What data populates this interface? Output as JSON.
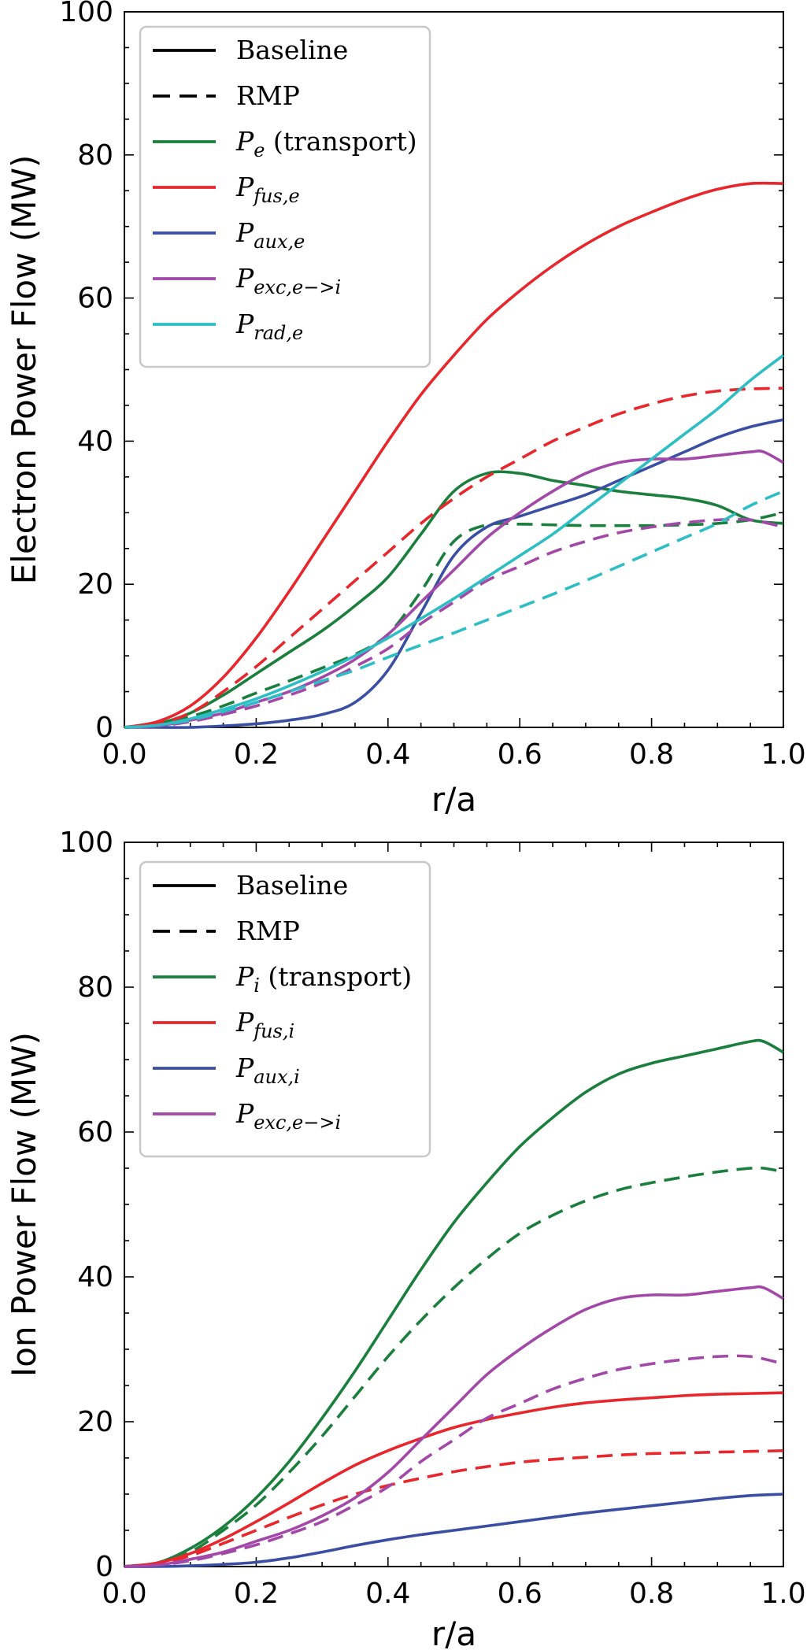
{
  "chart_data": [
    {
      "type": "line",
      "xlabel": "r/a",
      "ylabel": "Electron Power Flow (MW)",
      "xlim": [
        0.0,
        1.0
      ],
      "ylim": [
        0,
        100
      ],
      "xticks": [
        "0.0",
        "0.2",
        "0.4",
        "0.6",
        "0.8",
        "1.0"
      ],
      "yticks": [
        "0",
        "20",
        "40",
        "60",
        "80",
        "100"
      ],
      "legend_position": "top-left",
      "legend": [
        {
          "style": "solid",
          "color": "#000000",
          "text": "Baseline"
        },
        {
          "style": "dashed",
          "color": "#000000",
          "text": "RMP"
        },
        {
          "style": "solid",
          "color": "#1a7f3c",
          "main": "P",
          "sub": "e",
          "suffix": " (transport)"
        },
        {
          "style": "solid",
          "color": "#e8262b",
          "main": "P",
          "sub": "fus,e",
          "suffix": ""
        },
        {
          "style": "solid",
          "color": "#3a4fa3",
          "main": "P",
          "sub": "aux,e",
          "suffix": ""
        },
        {
          "style": "solid",
          "color": "#a347a8",
          "main": "P",
          "sub": "exc,e−>i",
          "suffix": ""
        },
        {
          "style": "solid",
          "color": "#2bbfc5",
          "main": "P",
          "sub": "rad,e",
          "suffix": ""
        }
      ],
      "series": [
        {
          "name": "P_e (transport) Baseline",
          "color": "#1a7f3c",
          "dash": false,
          "x": [
            0,
            0.05,
            0.1,
            0.15,
            0.2,
            0.25,
            0.3,
            0.35,
            0.4,
            0.45,
            0.5,
            0.55,
            0.6,
            0.65,
            0.7,
            0.75,
            0.8,
            0.85,
            0.9,
            0.95,
            1.0
          ],
          "y": [
            0,
            0.5,
            2,
            4.5,
            7.5,
            10.5,
            13.5,
            17,
            21,
            27,
            33,
            35.5,
            35.5,
            34.5,
            33.8,
            33,
            32.5,
            32,
            31,
            29,
            28.5
          ]
        },
        {
          "name": "P_e (transport) RMP",
          "color": "#1a7f3c",
          "dash": true,
          "x": [
            0,
            0.05,
            0.1,
            0.15,
            0.2,
            0.25,
            0.3,
            0.35,
            0.4,
            0.45,
            0.5,
            0.55,
            0.6,
            0.65,
            0.7,
            0.75,
            0.8,
            0.85,
            0.9,
            0.95,
            1.0
          ],
          "y": [
            0,
            0.4,
            1.5,
            3,
            4.8,
            6.5,
            8.3,
            10.2,
            13,
            19,
            26,
            28.3,
            28.4,
            28.3,
            28.2,
            28.2,
            28.2,
            28.3,
            28.5,
            29,
            30
          ]
        },
        {
          "name": "P_fus,e Baseline",
          "color": "#e8262b",
          "dash": false,
          "x": [
            0,
            0.05,
            0.1,
            0.15,
            0.2,
            0.25,
            0.3,
            0.35,
            0.4,
            0.45,
            0.5,
            0.55,
            0.6,
            0.65,
            0.7,
            0.75,
            0.8,
            0.85,
            0.9,
            0.95,
            1.0
          ],
          "y": [
            0,
            0.8,
            3,
            7,
            12.5,
            19,
            26,
            33,
            40,
            46.5,
            52,
            57,
            61,
            64.5,
            67.5,
            70,
            72,
            73.8,
            75.2,
            76,
            76
          ]
        },
        {
          "name": "P_fus,e RMP",
          "color": "#e8262b",
          "dash": true,
          "x": [
            0,
            0.05,
            0.1,
            0.15,
            0.2,
            0.25,
            0.3,
            0.35,
            0.4,
            0.45,
            0.5,
            0.55,
            0.6,
            0.65,
            0.7,
            0.75,
            0.8,
            0.85,
            0.9,
            0.95,
            1.0
          ],
          "y": [
            0,
            0.5,
            2,
            5,
            8.5,
            12.5,
            16.5,
            20.5,
            24.5,
            28.5,
            32,
            35,
            37.5,
            40,
            42,
            43.8,
            45.2,
            46.3,
            47,
            47.3,
            47.4
          ]
        },
        {
          "name": "P_aux,e Baseline",
          "color": "#3a4fa3",
          "dash": false,
          "x": [
            0,
            0.05,
            0.1,
            0.15,
            0.2,
            0.25,
            0.3,
            0.35,
            0.4,
            0.45,
            0.5,
            0.55,
            0.6,
            0.65,
            0.7,
            0.75,
            0.8,
            0.85,
            0.9,
            0.95,
            1.0
          ],
          "y": [
            0,
            0,
            0,
            0.2,
            0.5,
            1,
            1.8,
            3.5,
            8,
            16,
            24,
            28,
            29.5,
            31,
            32.5,
            34.5,
            36.5,
            38.5,
            40.5,
            42,
            43
          ]
        },
        {
          "name": "P_exc,e->i Baseline",
          "color": "#a347a8",
          "dash": false,
          "x": [
            0,
            0.05,
            0.1,
            0.15,
            0.2,
            0.25,
            0.3,
            0.35,
            0.4,
            0.45,
            0.5,
            0.55,
            0.6,
            0.65,
            0.7,
            0.75,
            0.8,
            0.85,
            0.9,
            0.95,
            0.97,
            1.0
          ],
          "y": [
            0,
            0.2,
            1,
            2,
            3.5,
            5,
            7,
            9.5,
            13,
            17.5,
            22,
            26.5,
            30,
            33,
            35.5,
            37,
            37.5,
            37.5,
            38,
            38.5,
            38.5,
            37
          ]
        },
        {
          "name": "P_exc,e->i RMP",
          "color": "#a347a8",
          "dash": true,
          "x": [
            0,
            0.05,
            0.1,
            0.15,
            0.2,
            0.25,
            0.3,
            0.35,
            0.4,
            0.45,
            0.5,
            0.55,
            0.6,
            0.65,
            0.7,
            0.75,
            0.8,
            0.85,
            0.9,
            0.95,
            1.0
          ],
          "y": [
            0,
            0.2,
            0.8,
            1.8,
            3,
            4.5,
            6.2,
            8.5,
            11,
            14.5,
            17.5,
            20.5,
            22.5,
            24.5,
            26,
            27.2,
            28,
            28.6,
            29,
            29,
            28
          ]
        },
        {
          "name": "P_rad,e Baseline",
          "color": "#2bbfc5",
          "dash": false,
          "x": [
            0,
            0.05,
            0.1,
            0.15,
            0.2,
            0.25,
            0.3,
            0.35,
            0.4,
            0.45,
            0.5,
            0.55,
            0.6,
            0.65,
            0.7,
            0.75,
            0.8,
            0.85,
            0.9,
            0.95,
            1.0
          ],
          "y": [
            0,
            0.3,
            1.2,
            2.5,
            4,
            5.8,
            7.8,
            10,
            12.5,
            15.2,
            18,
            21,
            24,
            27,
            30.5,
            34,
            37.5,
            41,
            44.5,
            48.5,
            52
          ]
        },
        {
          "name": "P_rad,e RMP",
          "color": "#2bbfc5",
          "dash": true,
          "x": [
            0,
            0.05,
            0.1,
            0.15,
            0.2,
            0.25,
            0.3,
            0.35,
            0.4,
            0.45,
            0.5,
            0.55,
            0.6,
            0.65,
            0.7,
            0.75,
            0.8,
            0.85,
            0.9,
            0.95,
            1.0
          ],
          "y": [
            0,
            0.3,
            1,
            2.2,
            3.5,
            5,
            6.5,
            8,
            9.8,
            11.5,
            13.2,
            15,
            16.8,
            18.6,
            20.5,
            22.5,
            24.5,
            26.5,
            28.5,
            31,
            33
          ]
        }
      ]
    },
    {
      "type": "line",
      "xlabel": "r/a",
      "ylabel": "Ion Power Flow (MW)",
      "xlim": [
        0.0,
        1.0
      ],
      "ylim": [
        0,
        100
      ],
      "xticks": [
        "0.0",
        "0.2",
        "0.4",
        "0.6",
        "0.8",
        "1.0"
      ],
      "yticks": [
        "0",
        "20",
        "40",
        "60",
        "80",
        "100"
      ],
      "legend_position": "top-left",
      "legend": [
        {
          "style": "solid",
          "color": "#000000",
          "text": "Baseline"
        },
        {
          "style": "dashed",
          "color": "#000000",
          "text": "RMP"
        },
        {
          "style": "solid",
          "color": "#1a7f3c",
          "main": "P",
          "sub": "i",
          "suffix": " (transport)"
        },
        {
          "style": "solid",
          "color": "#e8262b",
          "main": "P",
          "sub": "fus,i",
          "suffix": ""
        },
        {
          "style": "solid",
          "color": "#3a4fa3",
          "main": "P",
          "sub": "aux,i",
          "suffix": ""
        },
        {
          "style": "solid",
          "color": "#a347a8",
          "main": "P",
          "sub": "exc,e−>i",
          "suffix": ""
        }
      ],
      "series": [
        {
          "name": "P_i (transport) Baseline",
          "color": "#1a7f3c",
          "dash": false,
          "x": [
            0,
            0.05,
            0.1,
            0.15,
            0.2,
            0.25,
            0.3,
            0.35,
            0.4,
            0.45,
            0.5,
            0.55,
            0.6,
            0.65,
            0.7,
            0.75,
            0.8,
            0.85,
            0.9,
            0.95,
            0.97,
            1.0
          ],
          "y": [
            0,
            0.5,
            2.5,
            5.5,
            9.5,
            14.5,
            20.5,
            27,
            34,
            41,
            47.5,
            53,
            58,
            62,
            65.5,
            68,
            69.5,
            70.5,
            71.5,
            72.5,
            72.5,
            71
          ]
        },
        {
          "name": "P_i (transport) RMP",
          "color": "#1a7f3c",
          "dash": true,
          "x": [
            0,
            0.05,
            0.1,
            0.15,
            0.2,
            0.25,
            0.3,
            0.35,
            0.4,
            0.45,
            0.5,
            0.55,
            0.6,
            0.65,
            0.7,
            0.75,
            0.8,
            0.85,
            0.9,
            0.95,
            0.97,
            1.0
          ],
          "y": [
            0,
            0.5,
            2,
            5,
            8.5,
            13,
            18,
            23.5,
            29,
            34,
            38.5,
            42.5,
            46,
            48.5,
            50.5,
            52,
            53,
            53.8,
            54.5,
            55,
            55,
            54.5
          ]
        },
        {
          "name": "P_fus,i Baseline",
          "color": "#e8262b",
          "dash": false,
          "x": [
            0,
            0.05,
            0.1,
            0.15,
            0.2,
            0.25,
            0.3,
            0.35,
            0.4,
            0.45,
            0.5,
            0.55,
            0.6,
            0.65,
            0.7,
            0.75,
            0.8,
            0.85,
            0.9,
            0.95,
            1.0
          ],
          "y": [
            0,
            0.5,
            1.8,
            3.8,
            6.2,
            8.8,
            11.5,
            14,
            16,
            17.7,
            19.2,
            20.3,
            21.2,
            22,
            22.6,
            23,
            23.3,
            23.6,
            23.8,
            23.9,
            24
          ]
        },
        {
          "name": "P_fus,i RMP",
          "color": "#e8262b",
          "dash": true,
          "x": [
            0,
            0.05,
            0.1,
            0.15,
            0.2,
            0.25,
            0.3,
            0.35,
            0.4,
            0.45,
            0.5,
            0.55,
            0.6,
            0.65,
            0.7,
            0.75,
            0.8,
            0.85,
            0.9,
            0.95,
            1.0
          ],
          "y": [
            0,
            0.4,
            1.5,
            3.2,
            5,
            6.8,
            8.5,
            10,
            11.2,
            12.2,
            13.1,
            13.8,
            14.4,
            14.8,
            15.1,
            15.4,
            15.6,
            15.7,
            15.8,
            15.9,
            16
          ]
        },
        {
          "name": "P_aux,i Baseline",
          "color": "#3a4fa3",
          "dash": false,
          "x": [
            0,
            0.05,
            0.1,
            0.15,
            0.2,
            0.25,
            0.3,
            0.35,
            0.4,
            0.45,
            0.5,
            0.55,
            0.6,
            0.65,
            0.7,
            0.75,
            0.8,
            0.85,
            0.9,
            0.95,
            1.0
          ],
          "y": [
            0,
            0,
            0.1,
            0.3,
            0.6,
            1.2,
            2,
            2.9,
            3.7,
            4.4,
            5,
            5.6,
            6.2,
            6.8,
            7.4,
            7.9,
            8.4,
            8.9,
            9.4,
            9.8,
            10
          ]
        },
        {
          "name": "P_exc,e->i Baseline",
          "color": "#a347a8",
          "dash": false,
          "x": [
            0,
            0.05,
            0.1,
            0.15,
            0.2,
            0.25,
            0.3,
            0.35,
            0.4,
            0.45,
            0.5,
            0.55,
            0.6,
            0.65,
            0.7,
            0.75,
            0.8,
            0.85,
            0.9,
            0.95,
            0.97,
            1.0
          ],
          "y": [
            0,
            0.2,
            1,
            2,
            3.5,
            5,
            7,
            9.5,
            13,
            17.5,
            22,
            26.5,
            30,
            33,
            35.5,
            37,
            37.5,
            37.5,
            38,
            38.5,
            38.5,
            37
          ]
        },
        {
          "name": "P_exc,e->i RMP",
          "color": "#a347a8",
          "dash": true,
          "x": [
            0,
            0.05,
            0.1,
            0.15,
            0.2,
            0.25,
            0.3,
            0.35,
            0.4,
            0.45,
            0.5,
            0.55,
            0.6,
            0.65,
            0.7,
            0.75,
            0.8,
            0.85,
            0.9,
            0.95,
            1.0
          ],
          "y": [
            0,
            0.2,
            0.8,
            1.8,
            3,
            4.5,
            6.2,
            8.5,
            11,
            14.5,
            17.5,
            20.5,
            22.5,
            24.5,
            26,
            27.2,
            28,
            28.6,
            29,
            29,
            28
          ]
        }
      ]
    }
  ]
}
